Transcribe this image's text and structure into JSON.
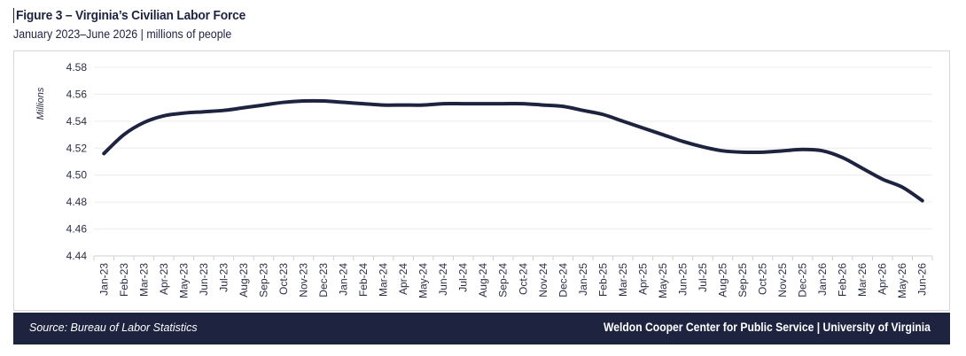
{
  "header": {
    "title": "Figure 3 – Virginia’s Civilian Labor Force",
    "subtitle": "January 2023–June 2026 | millions of people"
  },
  "footer": {
    "source": "Source: Bureau of Labor Statistics",
    "organization": "Weldon Cooper Center for Public Service | University of Virginia"
  },
  "colors": {
    "line": "#1e2440",
    "footer_bg": "#1e2440",
    "grid": "#ececec"
  },
  "chart_data": {
    "type": "line",
    "title": "Figure 3 – Virginia’s Civilian Labor Force",
    "subtitle": "January 2023–June 2026 | millions of people",
    "ylabel": "Millions",
    "xlabel": "",
    "ylim": [
      4.44,
      4.58
    ],
    "yticks": [
      "4.44",
      "4.46",
      "4.48",
      "4.50",
      "4.52",
      "4.54",
      "4.56",
      "4.58"
    ],
    "grid": true,
    "legend": "none",
    "categories": [
      "Jan-23",
      "Feb-23",
      "Mar-23",
      "Apr-23",
      "May-23",
      "Jun-23",
      "Jul-23",
      "Aug-23",
      "Sep-23",
      "Oct-23",
      "Nov-23",
      "Dec-23",
      "Jan-24",
      "Feb-24",
      "Mar-24",
      "Apr-24",
      "May-24",
      "Jun-24",
      "Jul-24",
      "Aug-24",
      "Sep-24",
      "Oct-24",
      "Nov-24",
      "Dec-24",
      "Jan-25",
      "Feb-25",
      "Mar-25",
      "Apr-25",
      "May-25",
      "Jun-25",
      "Jul-25",
      "Aug-25",
      "Sep-25",
      "Oct-25",
      "Nov-25",
      "Dec-25",
      "Jan-26",
      "Feb-26",
      "Mar-26",
      "Apr-26",
      "May-26",
      "Jun-26"
    ],
    "series": [
      {
        "values": [
          4.516,
          4.53,
          4.539,
          4.544,
          4.546,
          4.547,
          4.548,
          4.55,
          4.552,
          4.554,
          4.555,
          4.555,
          4.554,
          4.553,
          4.552,
          4.552,
          4.552,
          4.553,
          4.553,
          4.553,
          4.553,
          4.553,
          4.552,
          4.551,
          4.548,
          4.545,
          4.54,
          4.535,
          4.53,
          4.525,
          4.521,
          4.518,
          4.517,
          4.517,
          4.518,
          4.519,
          4.518,
          4.513,
          4.505,
          4.497,
          4.491,
          4.481
        ]
      }
    ]
  }
}
